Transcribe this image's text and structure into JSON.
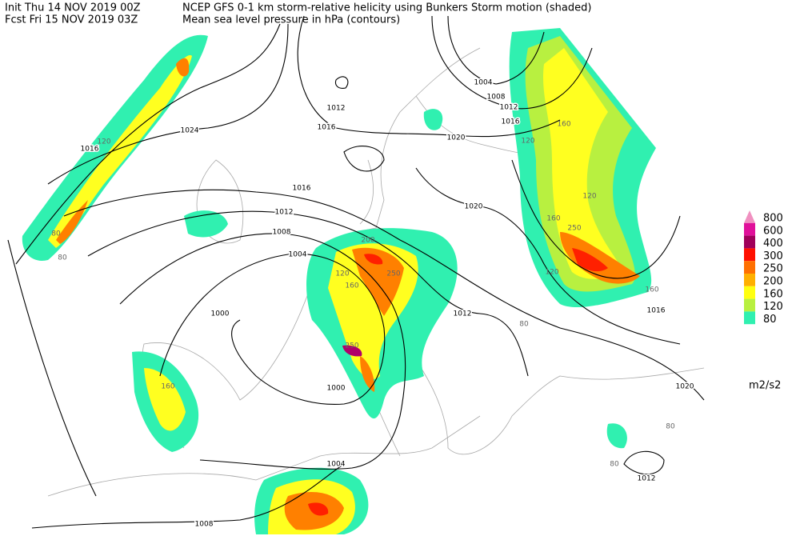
{
  "header": {
    "init": "Init  Thu 14 NOV 2019 00Z",
    "fcst": "Fcst Fri 15 NOV 2019 03Z",
    "product": "NCEP GFS 0-1 km storm-relative helicity using Bunkers Storm motion (shaded)",
    "contours": "Mean sea level pressure in hPa (contours)"
  },
  "legend": {
    "levels": [
      "800",
      "600",
      "400",
      "300",
      "250",
      "200",
      "160",
      "120",
      "80"
    ],
    "colors": [
      "#f090c0",
      "#e0109a",
      "#a0005a",
      "#ff1000",
      "#ff7000",
      "#ffb000",
      "#ffff10",
      "#b8f040",
      "#30f0b0"
    ],
    "units": "m2/s2"
  },
  "isobar_labels": [
    "1012",
    "1016",
    "1024",
    "1016",
    "1020",
    "1016",
    "1020",
    "1012",
    "1008",
    "1004",
    "1000",
    "1012",
    "1000",
    "1004",
    "1008",
    "1012",
    "1020",
    "1016",
    "1004",
    "1008",
    "1012",
    "1016"
  ],
  "shading_labels": [
    "80",
    "80",
    "120",
    "120",
    "160",
    "120",
    "160",
    "250",
    "120",
    "160",
    "200",
    "250",
    "120",
    "160",
    "250",
    "160",
    "80",
    "80",
    "80"
  ]
}
